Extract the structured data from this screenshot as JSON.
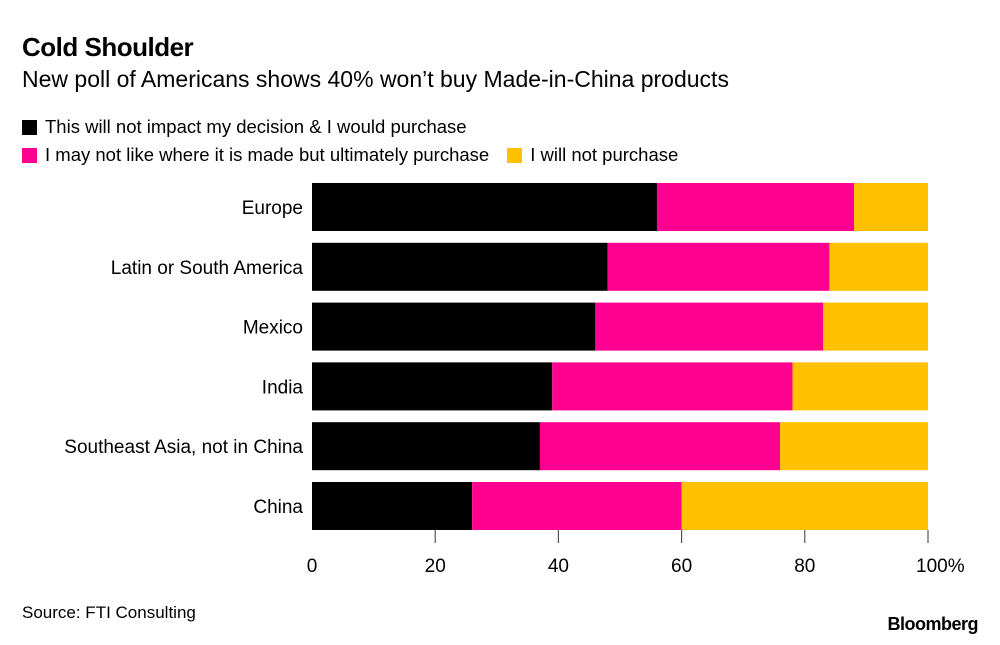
{
  "header": {
    "title": "Cold Shoulder",
    "subtitle": "New poll of Americans shows 40% won’t buy Made-in-China products"
  },
  "footer": {
    "source": "Source: FTI Consulting",
    "brand": "Bloomberg"
  },
  "chart_data": {
    "type": "bar",
    "orientation": "horizontal",
    "stacked": true,
    "title": "Cold Shoulder",
    "subtitle": "New poll of Americans shows 40% won’t buy Made-in-China products",
    "xlabel": "",
    "ylabel": "",
    "xlim": [
      0,
      100
    ],
    "x_ticks": [
      0,
      20,
      40,
      60,
      80,
      100
    ],
    "x_tick_labels": [
      "0",
      "20",
      "40",
      "60",
      "80",
      "100%"
    ],
    "grid": false,
    "legend_position": "top-left",
    "categories": [
      "Europe",
      "Latin or South America",
      "Mexico",
      "India",
      "Southeast Asia, not in China",
      "China"
    ],
    "series": [
      {
        "name": "This will not impact my decision & I would purchase",
        "color": "#000000",
        "values": [
          56,
          48,
          46,
          39,
          37,
          26
        ]
      },
      {
        "name": "I may not like where it is made but ultimately purchase",
        "color": "#ff0090",
        "values": [
          32,
          36,
          37,
          39,
          39,
          34
        ]
      },
      {
        "name": "I will not purchase",
        "color": "#ffc100",
        "values": [
          12,
          16,
          17,
          22,
          24,
          40
        ]
      }
    ],
    "source": "Source: FTI Consulting"
  }
}
